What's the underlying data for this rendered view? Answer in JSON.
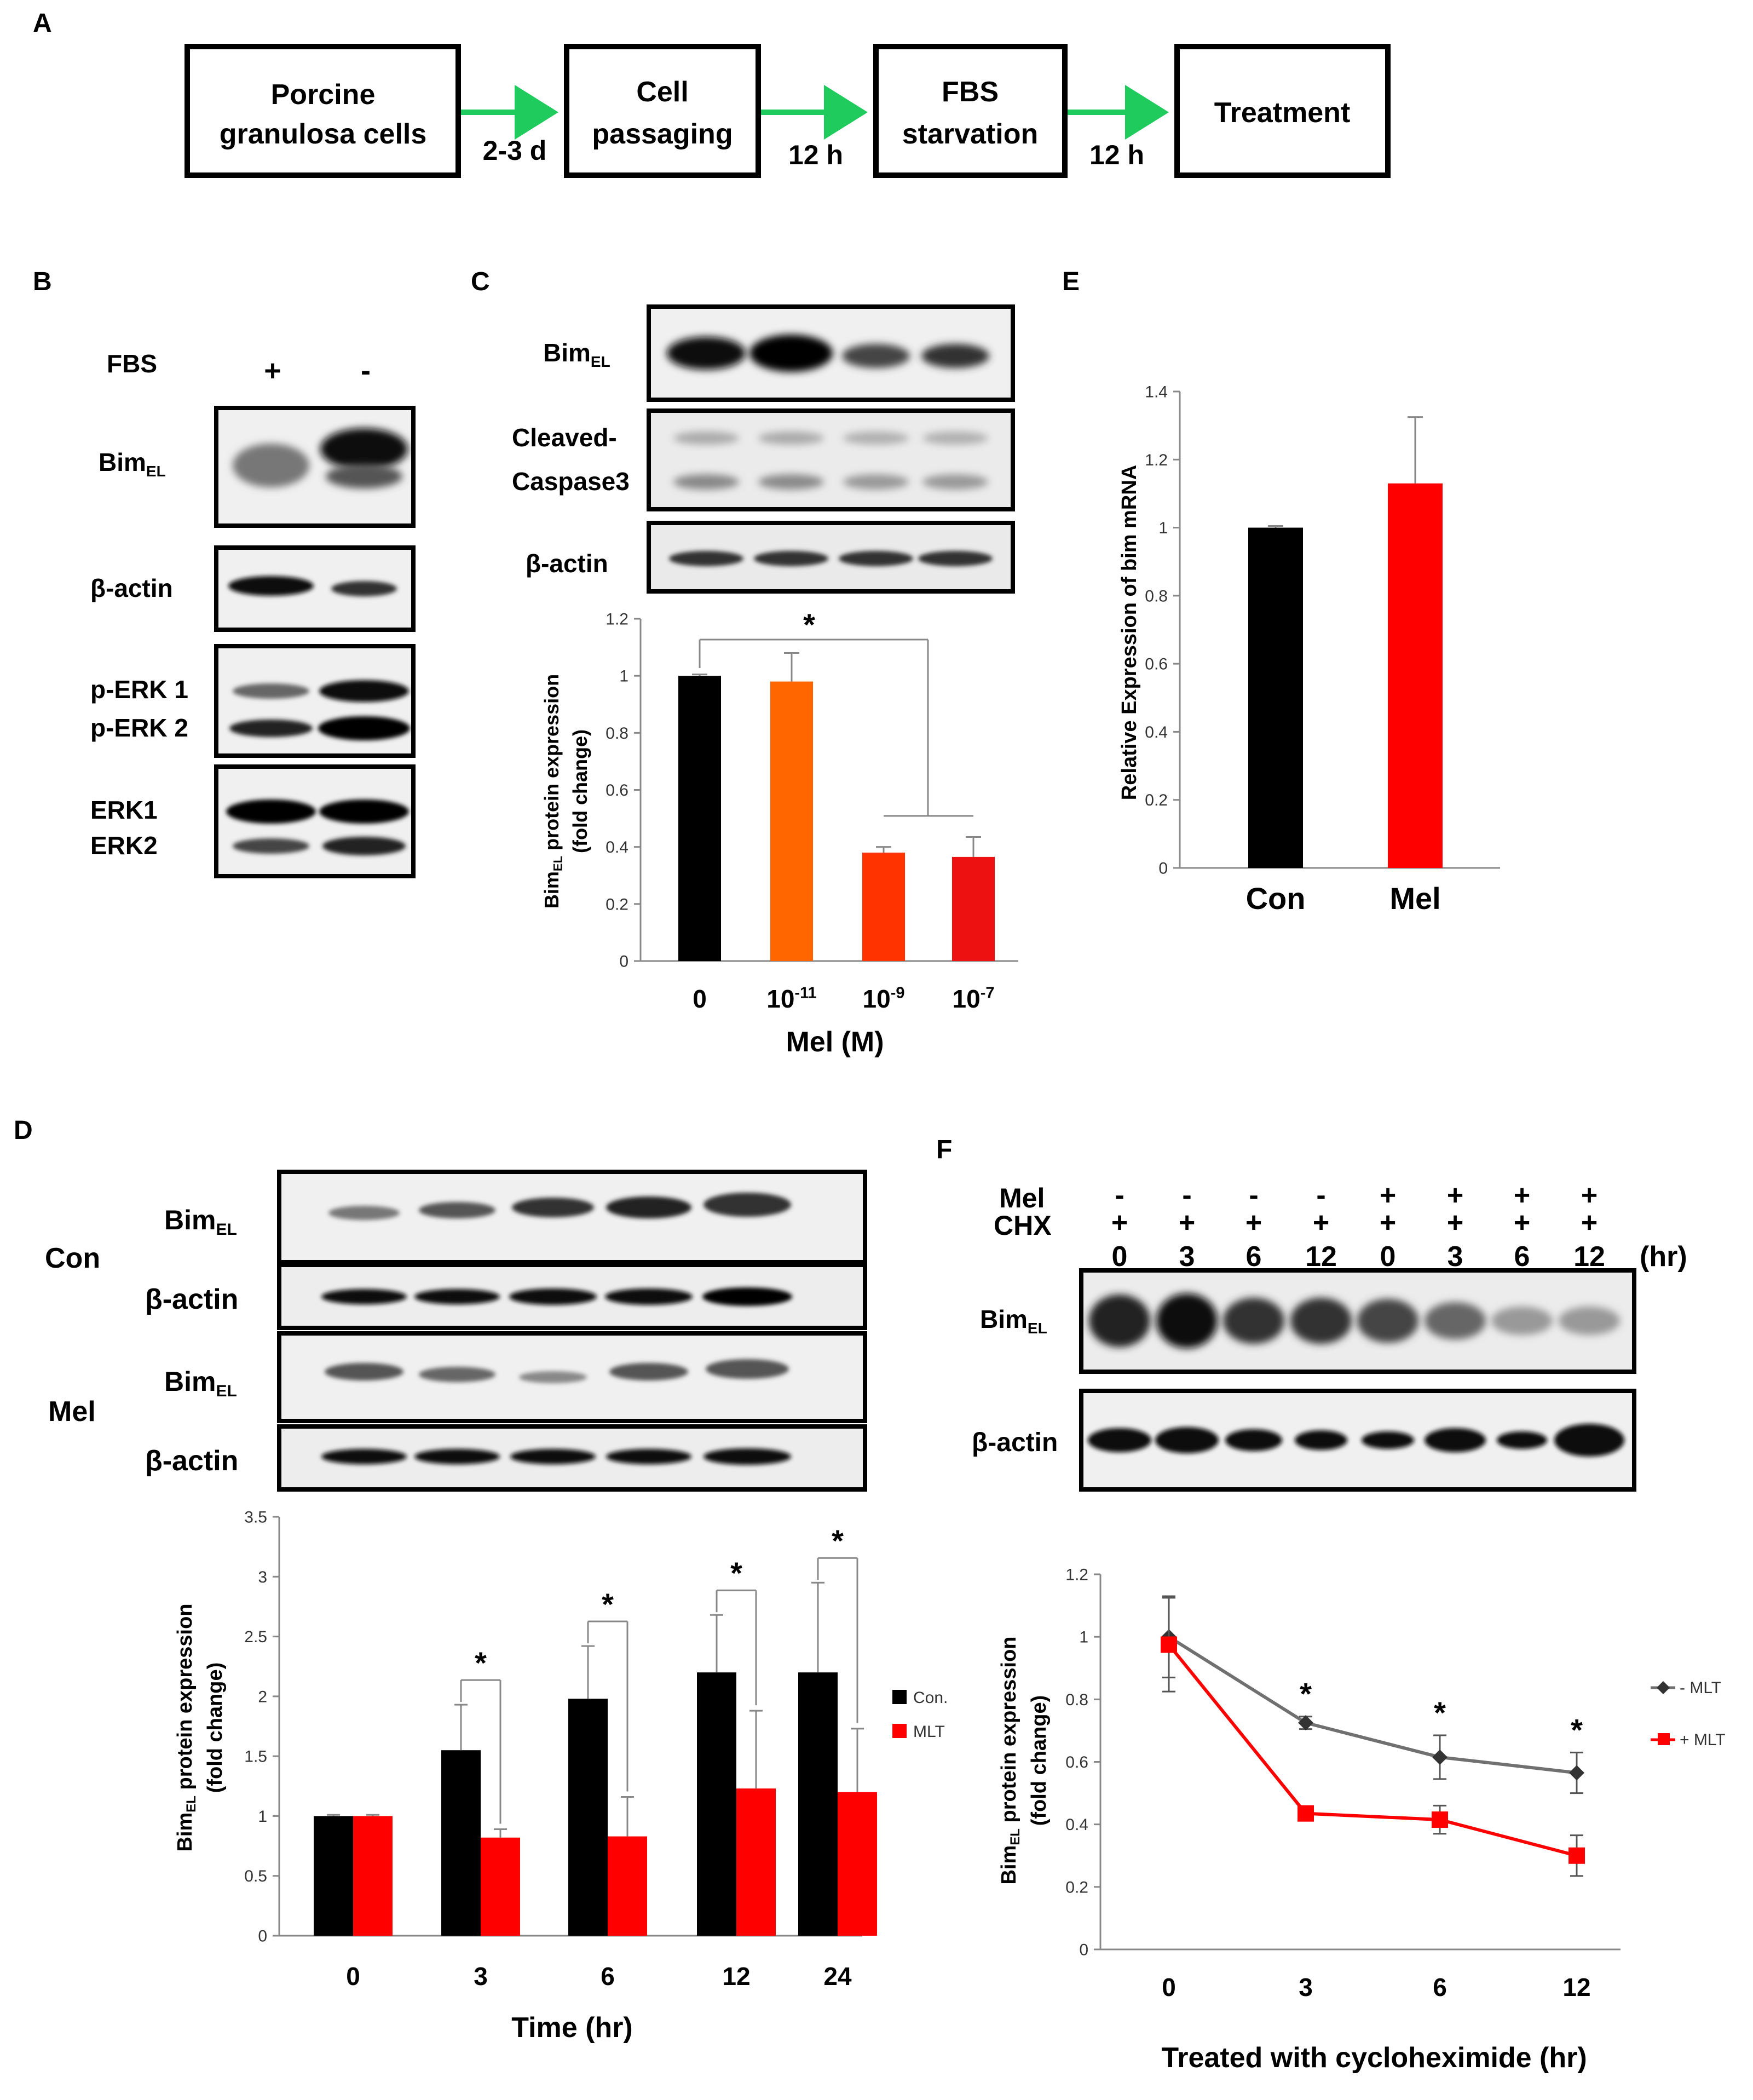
{
  "panel_labels": {
    "A": "A",
    "B": "B",
    "C": "C",
    "D": "D",
    "E": "E",
    "F": "F"
  },
  "flow": {
    "steps": [
      "Porcine granulosa cells",
      "Cell passaging",
      "FBS starvation",
      "Treatment"
    ],
    "durations": [
      "2-3 d",
      "12 h",
      "12 h"
    ],
    "arrow_color": "#1fcb5c"
  },
  "blot_b": {
    "fbs_label": "FBS",
    "lanes": [
      "+",
      "-"
    ],
    "bands": [
      "BimEL",
      "β-actin",
      "p-ERK 1",
      "p-ERK 2",
      "ERK1",
      "ERK2"
    ]
  },
  "blot_c": {
    "bands": [
      "BimEL",
      "Cleaved-",
      "Caspase3",
      "β-actin"
    ]
  },
  "blot_d": {
    "groups": [
      "Con",
      "Mel"
    ],
    "bands": [
      "BimEL",
      "β-actin"
    ]
  },
  "blot_f": {
    "row_labels": [
      "Mel",
      "CHX"
    ],
    "mel": [
      "-",
      "-",
      "-",
      "-",
      "+",
      "+",
      "+",
      "+"
    ],
    "chx": [
      "+",
      "+",
      "+",
      "+",
      "+",
      "+",
      "+",
      "+"
    ],
    "times": [
      "0",
      "3",
      "6",
      "12",
      "0",
      "3",
      "6",
      "12"
    ],
    "unit": "(hr)",
    "bands": [
      "BimEL",
      "β-actin"
    ]
  },
  "chart_data": [
    {
      "panel": "C",
      "type": "bar",
      "categories": [
        "0",
        "10-11",
        "10-9",
        "10-7"
      ],
      "values": [
        1.0,
        0.98,
        0.38,
        0.365
      ],
      "errors": [
        0.005,
        0.1,
        0.02,
        0.07
      ],
      "colors": [
        "#000000",
        "#ff6600",
        "#ff3300",
        "#ee1111"
      ],
      "ylim": [
        0,
        1.2
      ],
      "yticks": [
        "0",
        "0.2",
        "0.4",
        "0.6",
        "0.8",
        "1",
        "1.2"
      ],
      "ylabel": [
        "BimEL protein expression",
        "(fold  change)"
      ],
      "xlabel": "Mel (M)",
      "significance": "*"
    },
    {
      "panel": "E",
      "type": "bar",
      "categories": [
        "Con",
        "Mel"
      ],
      "values": [
        1.0,
        1.13
      ],
      "errors": [
        0.005,
        0.195
      ],
      "colors": [
        "#000000",
        "#ff0000"
      ],
      "ylim": [
        0,
        1.4
      ],
      "yticks": [
        "0",
        "0.2",
        "0.4",
        "0.6",
        "0.8",
        "1",
        "1.2",
        "1.4"
      ],
      "ylabel": "Relative Expression of bim mRNA",
      "xlabel": ""
    },
    {
      "panel": "D",
      "type": "bar",
      "categories": [
        "0",
        "3",
        "6",
        "12",
        "24"
      ],
      "series": [
        {
          "name": "Con.",
          "color": "#000000",
          "values": [
            1.0,
            1.55,
            1.98,
            2.2,
            2.2
          ],
          "errors": [
            0.01,
            0.38,
            0.44,
            0.48,
            0.75
          ]
        },
        {
          "name": "MLT",
          "color": "#ff0000",
          "values": [
            1.0,
            0.82,
            0.83,
            1.23,
            1.2
          ],
          "errors": [
            0.01,
            0.07,
            0.33,
            0.65,
            0.53
          ]
        }
      ],
      "ylim": [
        0,
        3.5
      ],
      "yticks": [
        "0",
        "0.5",
        "1",
        "1.5",
        "2",
        "2.5",
        "3",
        "3.5"
      ],
      "ylabel": [
        "BimEL protein expression",
        "(fold  change)"
      ],
      "xlabel": "Time (hr)",
      "legend_position": "right",
      "significance": "*"
    },
    {
      "panel": "F",
      "type": "line",
      "categories": [
        "0",
        "3",
        "6",
        "12"
      ],
      "series": [
        {
          "name": "- MLT",
          "color": "#707070",
          "marker": "diamond",
          "values": [
            1.0,
            0.725,
            0.615,
            0.565
          ],
          "errors": [
            0.13,
            0.02,
            0.07,
            0.065
          ]
        },
        {
          "name": "+ MLT",
          "color": "#ff0000",
          "marker": "square",
          "values": [
            0.975,
            0.435,
            0.415,
            0.3
          ],
          "errors": [
            0.15,
            0.01,
            0.045,
            0.065
          ]
        }
      ],
      "ylim": [
        0,
        1.2
      ],
      "yticks": [
        "0",
        "0.2",
        "0.4",
        "0.6",
        "0.8",
        "1",
        "1.2"
      ],
      "ylabel": [
        "BimEL protein expression",
        "(fold  change)"
      ],
      "xlabel": "Treated with cycloheximide (hr)",
      "legend_position": "right",
      "significance": "*"
    }
  ]
}
